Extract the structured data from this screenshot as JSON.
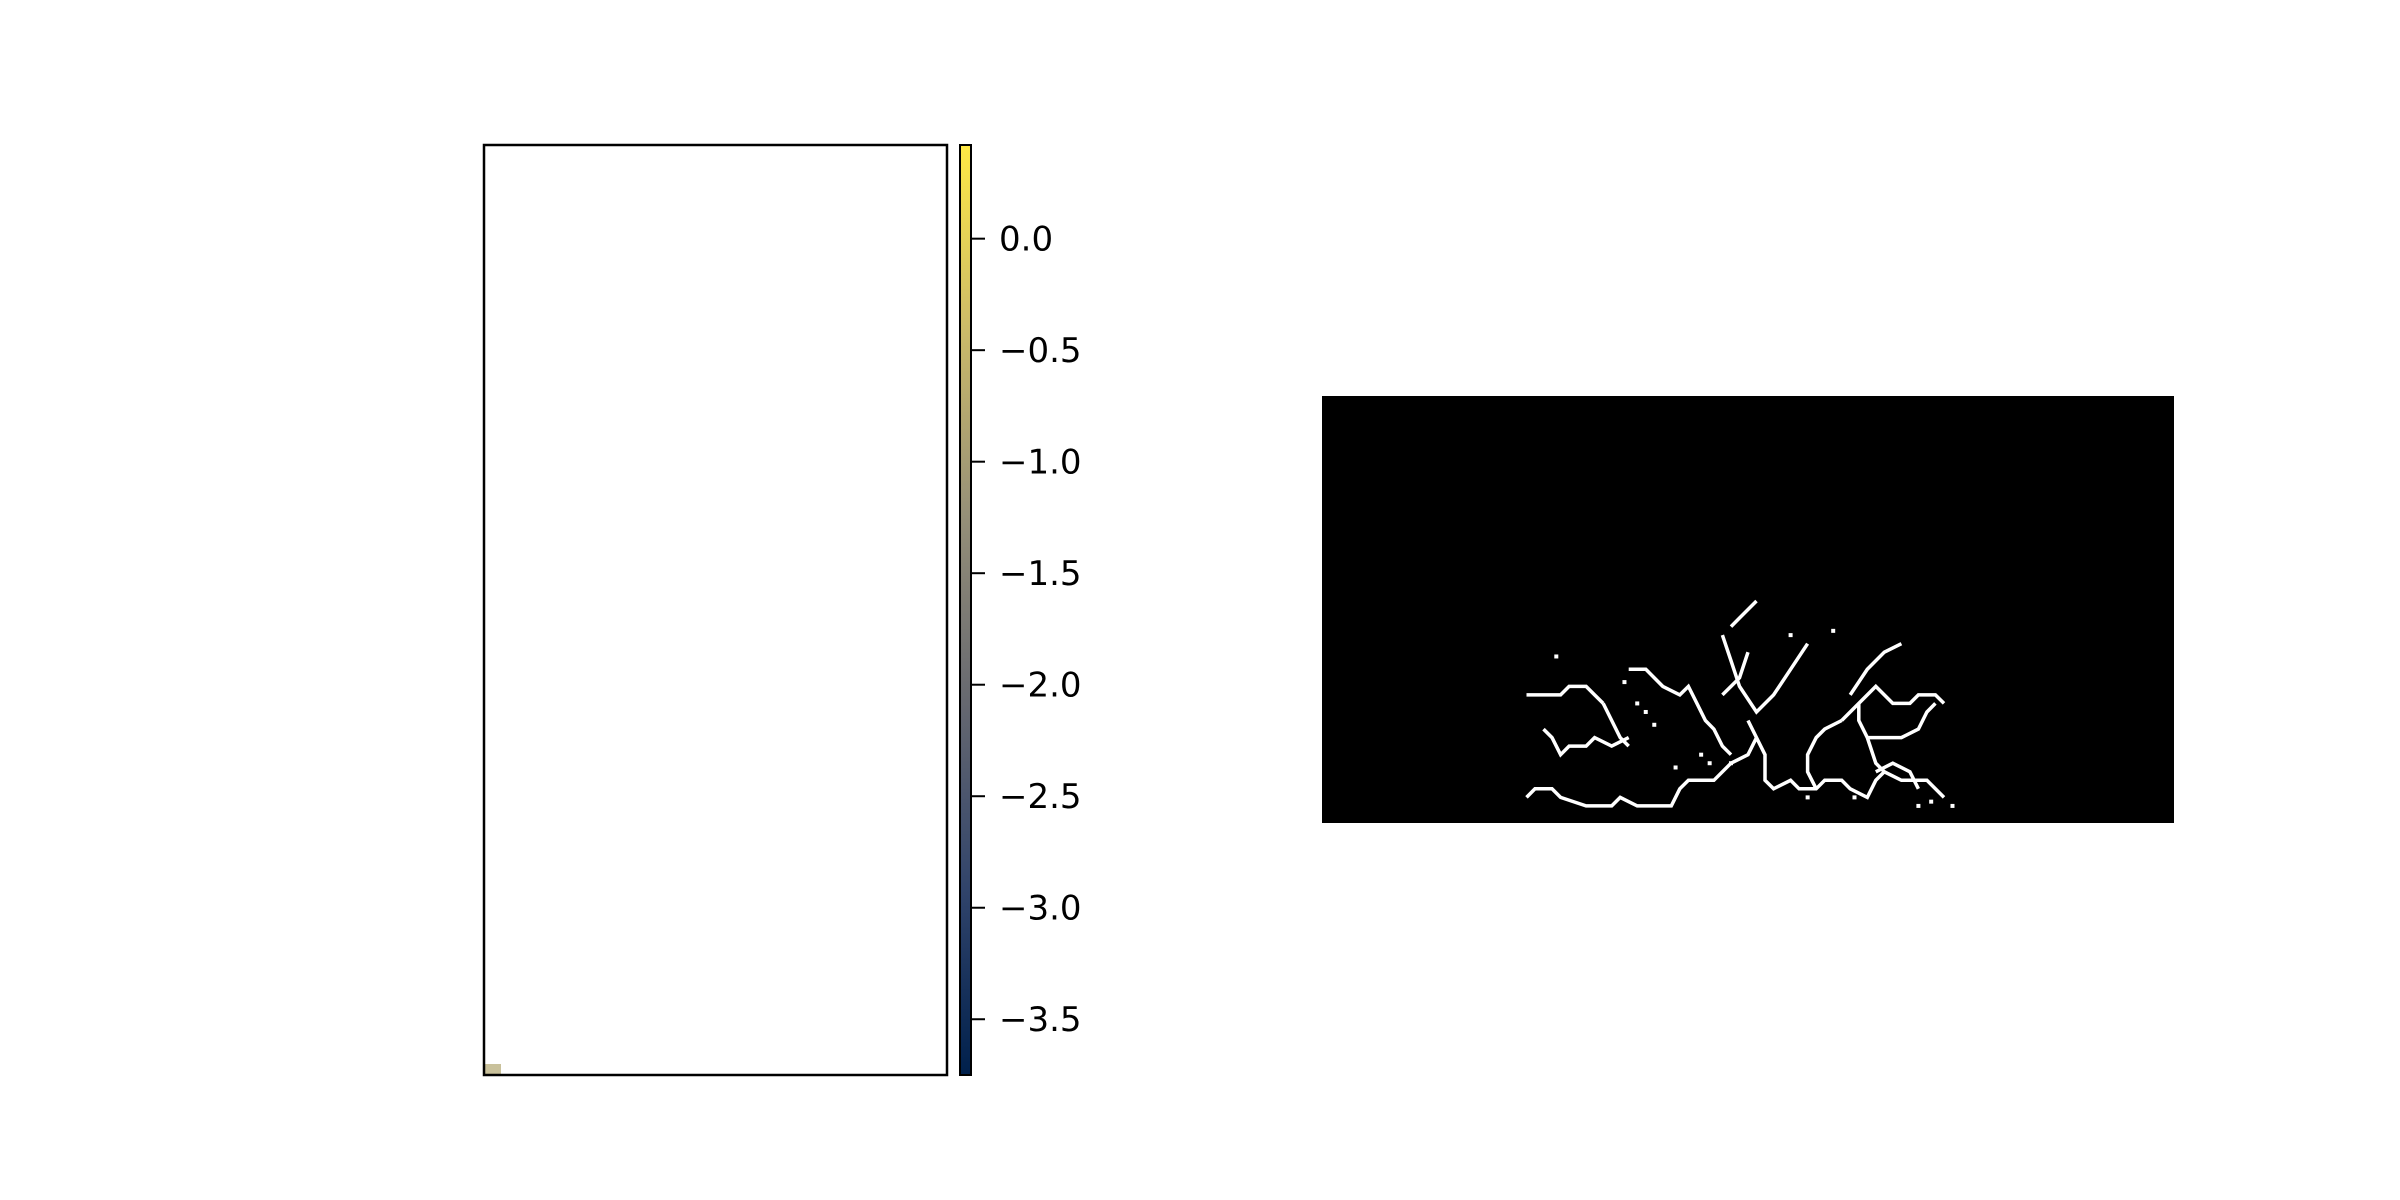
{
  "chart_data": [
    {
      "type": "heatmap",
      "title": "",
      "xlabel": "",
      "ylabel": "",
      "grid": false,
      "description_of_values": "Image panel almost entirely white; a single small colored cell at bottom-left corner.",
      "corner_cell_value": -0.8,
      "colorbar": {
        "colormap": "cividis",
        "vmin": -3.75,
        "vmax": 0.42,
        "ticks": [
          0.0,
          -0.5,
          -1.0,
          -1.5,
          -2.0,
          -2.5,
          -3.0,
          -3.5
        ],
        "tick_labels": [
          "0.0",
          "−0.5",
          "−1.0",
          "−1.5",
          "−2.0",
          "−2.5",
          "−3.0",
          "−3.5"
        ],
        "colors": [
          "#00204c",
          "#31446b",
          "#666870",
          "#958f78",
          "#cbba69",
          "#ffe945"
        ]
      }
    },
    {
      "type": "heatmap",
      "title": "",
      "xlabel": "",
      "ylabel": "",
      "grid": false,
      "background_color": "#000000",
      "line_color": "#ffffff",
      "description_of_values": "Binary edge/skeleton image: white branching crack lines on black background.",
      "grid_size": [
        200,
        100
      ],
      "polylines": [
        [
          [
            48,
            70
          ],
          [
            56,
            70
          ],
          [
            58,
            68
          ],
          [
            62,
            68
          ],
          [
            64,
            70
          ],
          [
            66,
            72
          ]
        ],
        [
          [
            52,
            78
          ],
          [
            54,
            80
          ],
          [
            56,
            84
          ],
          [
            58,
            82
          ],
          [
            62,
            82
          ],
          [
            64,
            80
          ],
          [
            68,
            82
          ],
          [
            72,
            80
          ]
        ],
        [
          [
            48,
            94
          ],
          [
            50,
            92
          ],
          [
            54,
            92
          ],
          [
            56,
            94
          ],
          [
            62,
            96
          ],
          [
            68,
            96
          ],
          [
            70,
            94
          ],
          [
            74,
            96
          ],
          [
            82,
            96
          ],
          [
            84,
            92
          ],
          [
            86,
            90
          ],
          [
            92,
            90
          ],
          [
            96,
            86
          ],
          [
            100,
            84
          ],
          [
            102,
            80
          ]
        ],
        [
          [
            66,
            72
          ],
          [
            68,
            76
          ],
          [
            70,
            80
          ],
          [
            72,
            82
          ]
        ],
        [
          [
            72,
            64
          ],
          [
            76,
            64
          ],
          [
            80,
            68
          ],
          [
            84,
            70
          ],
          [
            86,
            68
          ],
          [
            88,
            72
          ],
          [
            90,
            76
          ],
          [
            92,
            78
          ],
          [
            94,
            82
          ],
          [
            96,
            84
          ]
        ],
        [
          [
            94,
            56
          ],
          [
            96,
            62
          ],
          [
            98,
            68
          ],
          [
            102,
            74
          ],
          [
            106,
            70
          ],
          [
            110,
            64
          ],
          [
            114,
            58
          ]
        ],
        [
          [
            96,
            54
          ],
          [
            98,
            52
          ],
          [
            102,
            48
          ]
        ],
        [
          [
            100,
            60
          ],
          [
            98,
            66
          ],
          [
            96,
            68
          ],
          [
            94,
            70
          ]
        ],
        [
          [
            100,
            76
          ],
          [
            102,
            80
          ],
          [
            104,
            84
          ],
          [
            104,
            90
          ],
          [
            106,
            92
          ],
          [
            110,
            90
          ],
          [
            112,
            92
          ],
          [
            116,
            92
          ],
          [
            118,
            90
          ],
          [
            122,
            90
          ],
          [
            124,
            92
          ],
          [
            128,
            94
          ],
          [
            130,
            90
          ],
          [
            132,
            88
          ],
          [
            136,
            90
          ],
          [
            142,
            90
          ],
          [
            146,
            94
          ]
        ],
        [
          [
            116,
            92
          ],
          [
            114,
            88
          ],
          [
            114,
            84
          ],
          [
            116,
            80
          ],
          [
            118,
            78
          ],
          [
            122,
            76
          ]
        ],
        [
          [
            122,
            76
          ],
          [
            126,
            72
          ],
          [
            128,
            70
          ],
          [
            130,
            68
          ],
          [
            132,
            70
          ],
          [
            134,
            72
          ],
          [
            138,
            72
          ],
          [
            140,
            70
          ],
          [
            144,
            70
          ],
          [
            146,
            72
          ]
        ],
        [
          [
            126,
            72
          ],
          [
            126,
            76
          ],
          [
            128,
            80
          ],
          [
            130,
            86
          ],
          [
            132,
            88
          ]
        ],
        [
          [
            124,
            70
          ],
          [
            128,
            64
          ],
          [
            132,
            60
          ],
          [
            136,
            58
          ]
        ],
        [
          [
            128,
            80
          ],
          [
            136,
            80
          ],
          [
            140,
            78
          ],
          [
            142,
            74
          ],
          [
            144,
            72
          ]
        ],
        [
          [
            130,
            88
          ],
          [
            134,
            86
          ],
          [
            138,
            88
          ],
          [
            140,
            92
          ]
        ]
      ],
      "dots": [
        [
          55,
          61
        ],
        [
          71,
          67
        ],
        [
          74,
          72
        ],
        [
          76,
          74
        ],
        [
          78,
          77
        ],
        [
          91,
          86
        ],
        [
          96,
          86
        ],
        [
          114,
          94
        ],
        [
          125,
          94
        ],
        [
          140,
          96
        ],
        [
          143,
          95
        ],
        [
          148,
          96
        ],
        [
          120,
          55
        ],
        [
          110,
          56
        ],
        [
          83,
          87
        ],
        [
          89,
          84
        ]
      ]
    }
  ]
}
